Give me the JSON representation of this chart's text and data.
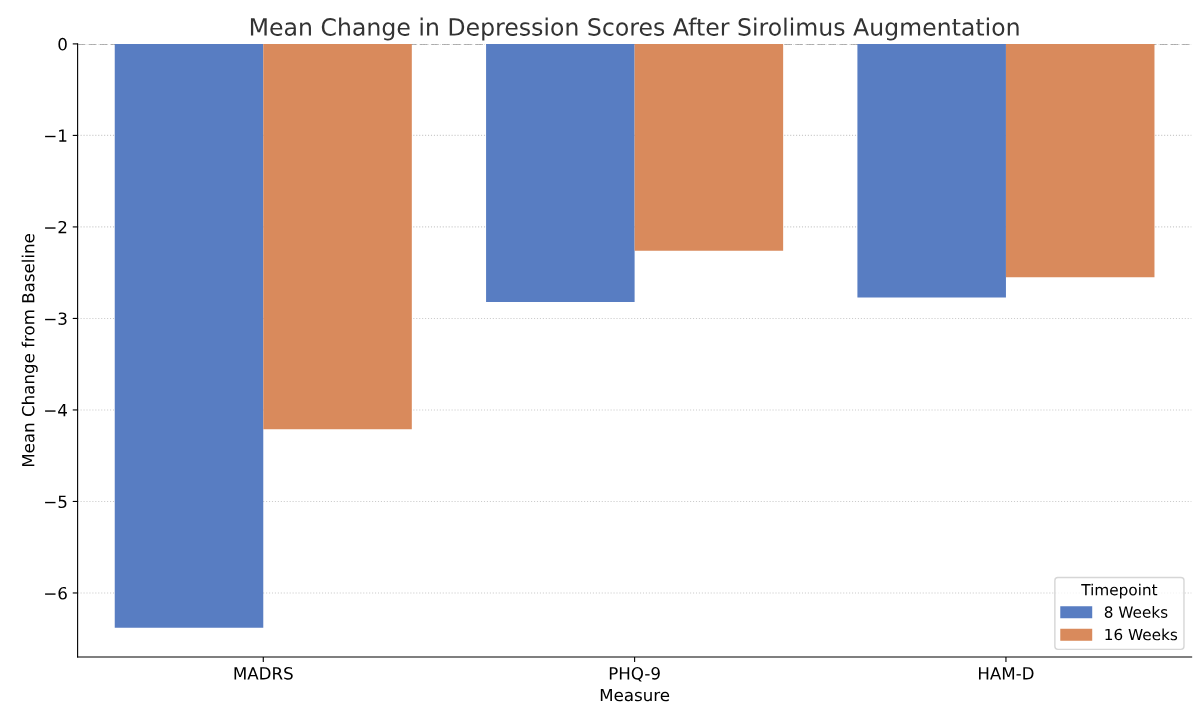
{
  "chart_data": {
    "type": "bar",
    "title": "Mean Change in Depression Scores After Sirolimus Augmentation",
    "xlabel": "Measure",
    "ylabel": "Mean Change from Baseline",
    "legend_title": "Timepoint",
    "categories": [
      "MADRS",
      "PHQ-9",
      "HAM-D"
    ],
    "series": [
      {
        "name": "8 Weeks",
        "color": "#587dc2",
        "values": [
          -6.38,
          -2.82,
          -2.77
        ]
      },
      {
        "name": "16 Weeks",
        "color": "#d98a5c",
        "values": [
          -4.21,
          -2.26,
          -2.55
        ]
      }
    ],
    "ylim": [
      -6.7,
      0
    ],
    "yticks": [
      {
        "value": -6,
        "label": "−6"
      },
      {
        "value": -5,
        "label": "−5"
      },
      {
        "value": -4,
        "label": "−4"
      },
      {
        "value": -3,
        "label": "−3"
      },
      {
        "value": -2,
        "label": "−2"
      },
      {
        "value": -1,
        "label": "−1"
      },
      0
    ],
    "ref_lines": [
      {
        "axis": "y",
        "value": 0,
        "label": null,
        "color": "#aaaaaa",
        "line_style": "dashed"
      }
    ],
    "grid": "y",
    "legend": "bottom right"
  }
}
